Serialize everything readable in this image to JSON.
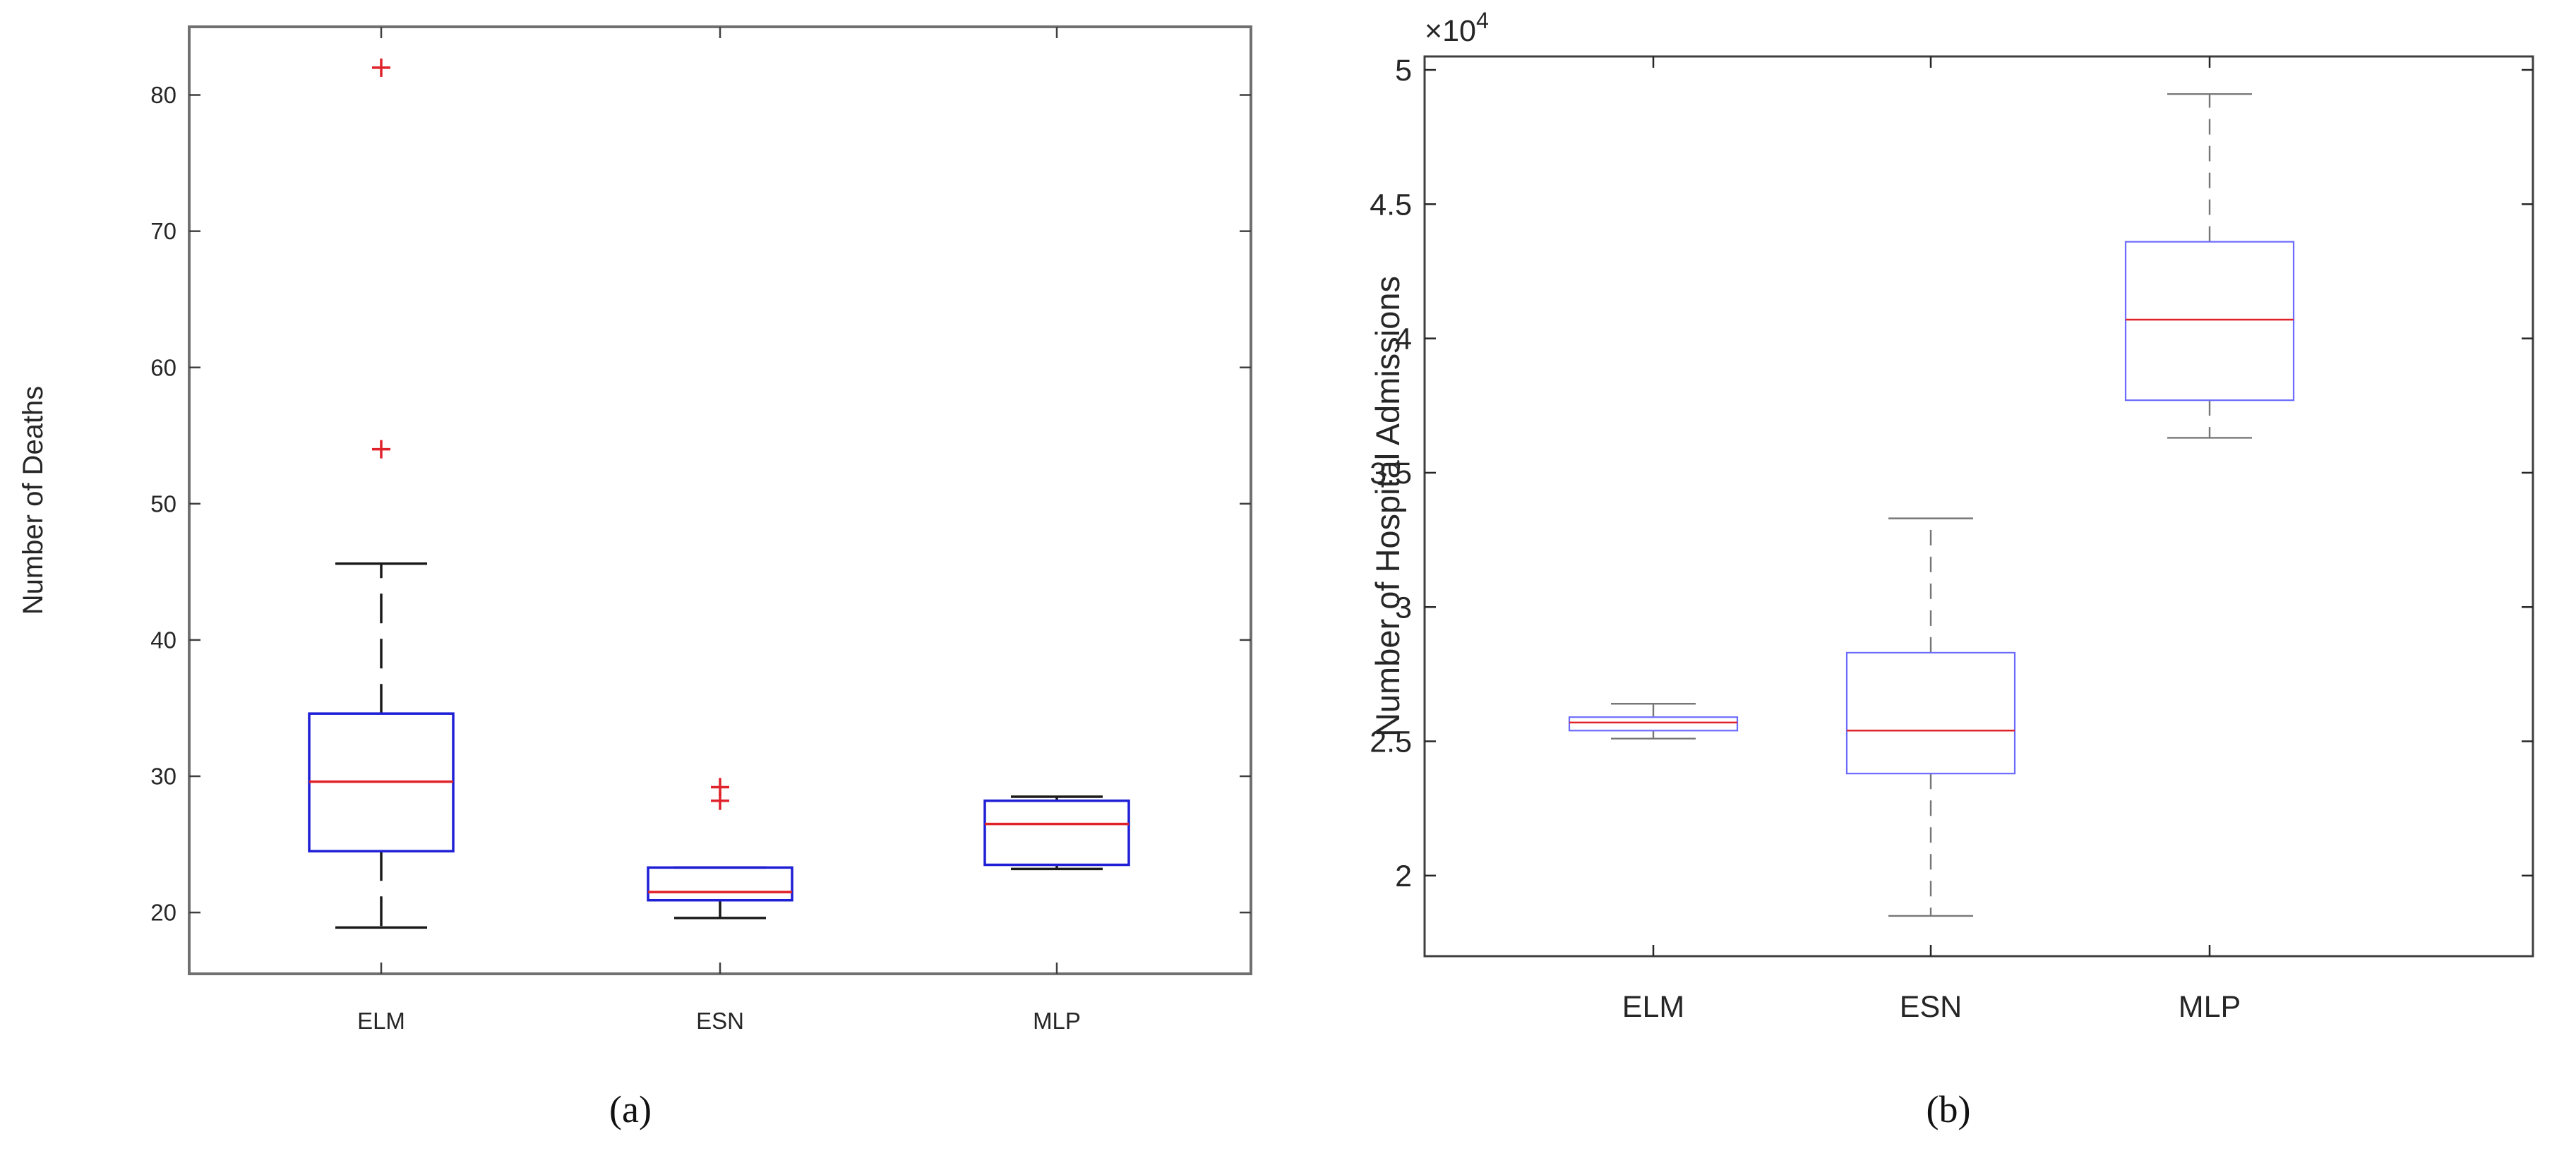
{
  "chart_data": [
    {
      "type": "boxplot",
      "panel_label": "(a)",
      "ylabel": "Number of Deaths",
      "categories": [
        "ELM",
        "ESN",
        "MLP"
      ],
      "ylim": [
        15.5,
        85
      ],
      "yticks": [
        20,
        30,
        40,
        50,
        60,
        70,
        80
      ],
      "ytick_labels": [
        "20",
        "30",
        "40",
        "50",
        "60",
        "70",
        "80"
      ],
      "grid": false,
      "colors": {
        "box": "#1f1fd6",
        "median": "#e0222a",
        "whisker": "#1a1a1a",
        "outlier": "#e0222a"
      },
      "boxes": [
        {
          "category": "ELM",
          "whisker_low": 18.9,
          "q1": 24.5,
          "median": 29.6,
          "q3": 34.6,
          "whisker_high": 45.6,
          "outliers": [
            54,
            82
          ]
        },
        {
          "category": "ESN",
          "whisker_low": 19.6,
          "q1": 20.9,
          "median": 21.5,
          "q3": 23.3,
          "whisker_high": 23.3,
          "outliers": [
            28.2,
            29.2
          ]
        },
        {
          "category": "MLP",
          "whisker_low": 23.2,
          "q1": 23.5,
          "median": 26.5,
          "q3": 28.2,
          "whisker_high": 28.5,
          "outliers": []
        }
      ]
    },
    {
      "type": "boxplot",
      "panel_label": "(b)",
      "ylabel": "Number of Hospital Admissions",
      "scale_label": "×10",
      "scale_exponent": "4",
      "categories": [
        "ELM",
        "ESN",
        "MLP"
      ],
      "ylim": [
        1.7,
        5.05
      ],
      "yticks": [
        2,
        2.5,
        3,
        3.5,
        4,
        4.5,
        5
      ],
      "ytick_labels": [
        "2",
        "2.5",
        "3",
        "3.5",
        "4",
        "4.5",
        "5"
      ],
      "grid": false,
      "colors": {
        "box": "#6b6bff",
        "median": "#e0222a",
        "whisker": "#777777",
        "outlier": "#e0222a"
      },
      "boxes": [
        {
          "category": "ELM",
          "whisker_low": 2.51,
          "q1": 2.54,
          "median": 2.57,
          "q3": 2.59,
          "whisker_high": 2.64,
          "outliers": []
        },
        {
          "category": "ESN",
          "whisker_low": 1.85,
          "q1": 2.38,
          "median": 2.54,
          "q3": 2.83,
          "whisker_high": 3.33,
          "outliers": []
        },
        {
          "category": "MLP",
          "whisker_low": 3.63,
          "q1": 3.77,
          "median": 4.07,
          "q3": 4.36,
          "whisker_high": 4.91,
          "outliers": []
        }
      ]
    }
  ]
}
